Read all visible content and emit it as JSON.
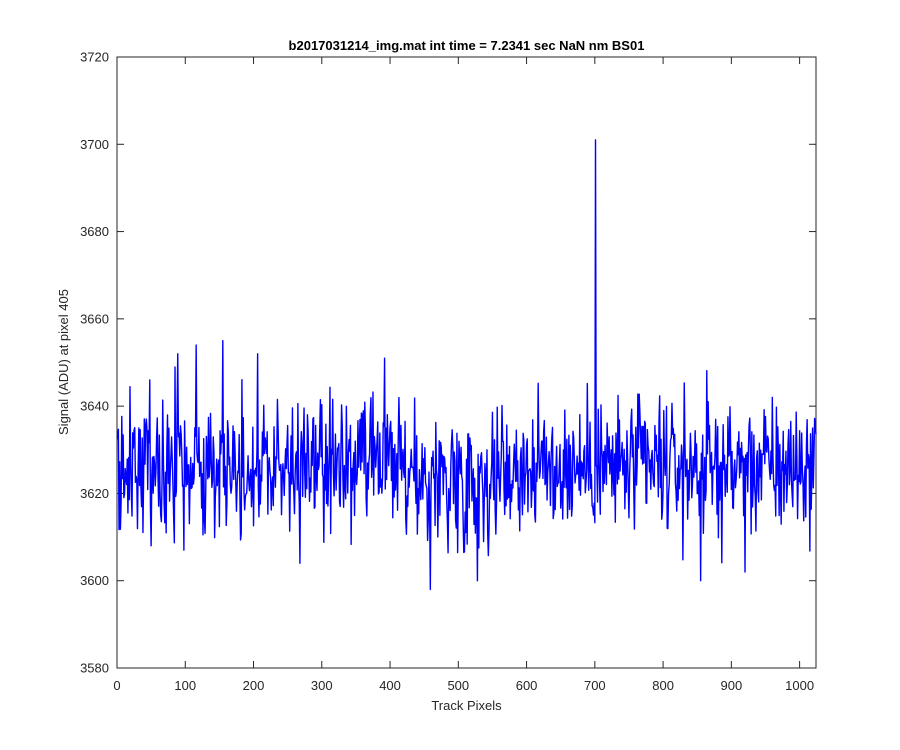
{
  "chart_data": {
    "type": "line",
    "title": "b2017031214_img.mat int time = 7.2341 sec  NaN nm BS01",
    "xlabel": "Track Pixels",
    "ylabel": "Signal (ADU) at pixel 405",
    "xlim": [
      0,
      1024
    ],
    "ylim": [
      3580,
      3720
    ],
    "xticks": [
      0,
      100,
      200,
      300,
      400,
      500,
      600,
      700,
      800,
      900,
      1000
    ],
    "yticks": [
      3580,
      3600,
      3620,
      3640,
      3660,
      3680,
      3700,
      3720
    ],
    "grid": false,
    "legend": "none",
    "series": [
      {
        "color": "#0000ff",
        "points_per_sample": 1,
        "x_start": 1,
        "x_end": 1024,
        "baseline_mean": 3626,
        "noise_range": [
          3598,
          3655
        ],
        "peaks": [
          {
            "x": 701,
            "y": 3701
          },
          {
            "x": 155,
            "y": 3655
          },
          {
            "x": 116,
            "y": 3654
          },
          {
            "x": 89,
            "y": 3652
          },
          {
            "x": 206,
            "y": 3652
          },
          {
            "x": 392,
            "y": 3651
          },
          {
            "x": 855,
            "y": 3646
          },
          {
            "x": 48,
            "y": 3646
          }
        ],
        "troughs": [
          {
            "x": 459,
            "y": 3598
          },
          {
            "x": 528,
            "y": 3600
          },
          {
            "x": 855,
            "y": 3600
          },
          {
            "x": 920,
            "y": 3602
          },
          {
            "x": 268,
            "y": 3604
          },
          {
            "x": 98,
            "y": 3607
          },
          {
            "x": 50,
            "y": 3608
          }
        ]
      }
    ]
  },
  "colors": {
    "line": "#0000ff",
    "axis": "#262626",
    "background": "#ffffff"
  }
}
